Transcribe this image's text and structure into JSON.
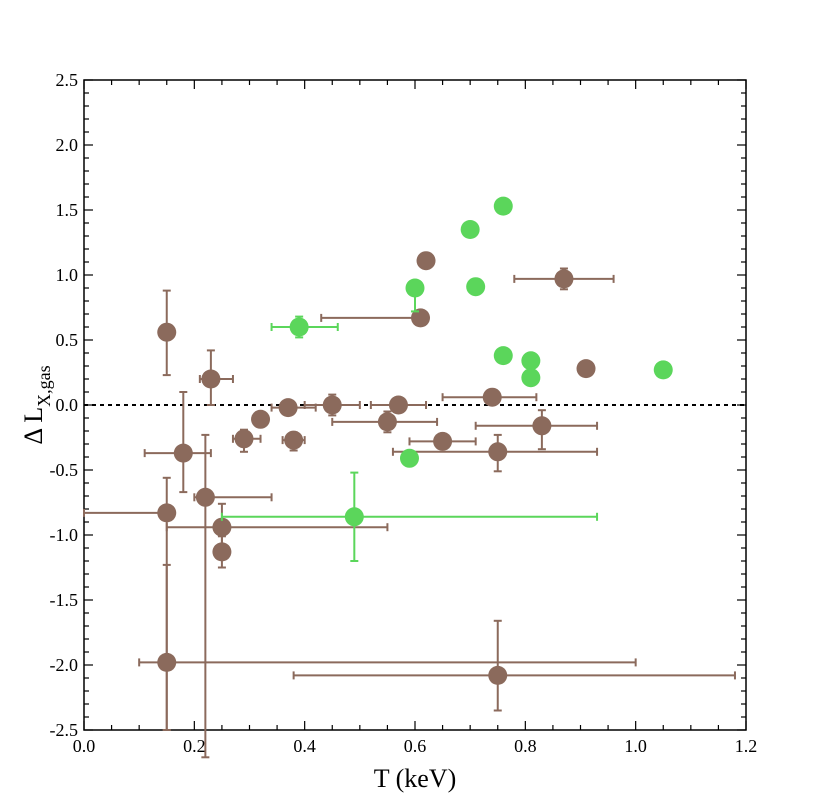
{
  "chart_data": {
    "type": "scatter",
    "title": "",
    "xlabel": "T (keV)",
    "ylabel_main": "Δ L",
    "ylabel_sub": "X,gas",
    "xlim": [
      0.0,
      1.2
    ],
    "ylim": [
      -2.5,
      2.5
    ],
    "x_ticks": [
      "0.0",
      "0.2",
      "0.4",
      "0.6",
      "0.8",
      "1.0",
      "1.2"
    ],
    "y_ticks": [
      "2.5",
      "2.0",
      "1.5",
      "1.0",
      "0.5",
      "0.0",
      "-0.5",
      "-1.0",
      "-1.5",
      "-2.0",
      "-2.5"
    ],
    "reference_line_y": 0.0,
    "grid": false,
    "series": [
      {
        "color": "#8b6a5c",
        "points": [
          {
            "x": 0.15,
            "y": 0.56,
            "xerr": [
              0.0,
              0.0
            ],
            "yerr": [
              0.33,
              0.32
            ]
          },
          {
            "x": 0.23,
            "y": 0.2,
            "xerr": [
              0.02,
              0.04
            ],
            "yerr": [
              0.2,
              0.22
            ]
          },
          {
            "x": 0.18,
            "y": -0.37,
            "xerr": [
              0.07,
              0.05
            ],
            "yerr": [
              0.3,
              0.47
            ]
          },
          {
            "x": 0.22,
            "y": -0.71,
            "xerr": [
              0.02,
              0.12
            ],
            "yerr": [
              2.0,
              0.48
            ]
          },
          {
            "x": 0.15,
            "y": -0.83,
            "xerr": [
              0.15,
              0.0
            ],
            "yerr": [
              1.67,
              0.27
            ]
          },
          {
            "x": 0.25,
            "y": -0.94,
            "xerr": [
              0.1,
              0.3
            ],
            "yerr": [
              0.15,
              0.18
            ]
          },
          {
            "x": 0.25,
            "y": -1.13,
            "xerr": [
              0.0,
              0.0
            ],
            "yerr": [
              0.12,
              0.12
            ]
          },
          {
            "x": 0.15,
            "y": -1.98,
            "xerr": [
              0.05,
              0.85
            ],
            "yerr": [
              0.52,
              0.75
            ]
          },
          {
            "x": 0.29,
            "y": -0.26,
            "xerr": [
              0.02,
              0.03
            ],
            "yerr": [
              0.1,
              0.07
            ]
          },
          {
            "x": 0.32,
            "y": -0.11,
            "xerr": [
              0.0,
              0.0
            ],
            "yerr": [
              0.0,
              0.0
            ]
          },
          {
            "x": 0.37,
            "y": -0.02,
            "xerr": [
              0.03,
              0.05
            ],
            "yerr": [
              0.03,
              0.03
            ]
          },
          {
            "x": 0.38,
            "y": -0.27,
            "xerr": [
              0.02,
              0.02
            ],
            "yerr": [
              0.08,
              0.06
            ]
          },
          {
            "x": 0.45,
            "y": 0.0,
            "xerr": [
              0.05,
              0.05
            ],
            "yerr": [
              0.08,
              0.08
            ]
          },
          {
            "x": 0.57,
            "y": 0.0,
            "xerr": [
              0.05,
              0.05
            ],
            "yerr": [
              0.02,
              0.02
            ]
          },
          {
            "x": 0.55,
            "y": -0.13,
            "xerr": [
              0.1,
              0.09
            ],
            "yerr": [
              0.08,
              0.08
            ]
          },
          {
            "x": 0.61,
            "y": 0.67,
            "xerr": [
              0.18,
              0.0
            ],
            "yerr": [
              0.03,
              0.03
            ]
          },
          {
            "x": 0.62,
            "y": 1.11,
            "xerr": [
              0.0,
              0.0
            ],
            "yerr": [
              0.0,
              0.0
            ]
          },
          {
            "x": 0.65,
            "y": -0.28,
            "xerr": [
              0.06,
              0.06
            ],
            "yerr": [
              0.05,
              0.05
            ]
          },
          {
            "x": 0.74,
            "y": 0.06,
            "xerr": [
              0.09,
              0.08
            ],
            "yerr": [
              0.05,
              0.05
            ]
          },
          {
            "x": 0.75,
            "y": -0.36,
            "xerr": [
              0.19,
              0.18
            ],
            "yerr": [
              0.15,
              0.13
            ]
          },
          {
            "x": 0.83,
            "y": -0.16,
            "xerr": [
              0.12,
              0.1
            ],
            "yerr": [
              0.18,
              0.12
            ]
          },
          {
            "x": 0.87,
            "y": 0.97,
            "xerr": [
              0.09,
              0.09
            ],
            "yerr": [
              0.08,
              0.08
            ]
          },
          {
            "x": 0.91,
            "y": 0.28,
            "xerr": [
              0.0,
              0.0
            ],
            "yerr": [
              0.0,
              0.0
            ]
          },
          {
            "x": 0.75,
            "y": -2.08,
            "xerr": [
              0.37,
              0.43
            ],
            "yerr": [
              0.27,
              0.42
            ]
          }
        ]
      },
      {
        "color": "#5bd65b",
        "points": [
          {
            "x": 0.39,
            "y": 0.6,
            "xerr": [
              0.05,
              0.07
            ],
            "yerr": [
              0.08,
              0.08
            ]
          },
          {
            "x": 0.6,
            "y": 0.9,
            "xerr": [
              0.0,
              0.0
            ],
            "yerr": [
              0.18,
              0.0
            ]
          },
          {
            "x": 0.7,
            "y": 1.35,
            "xerr": [
              0.0,
              0.0
            ],
            "yerr": [
              0.0,
              0.0
            ]
          },
          {
            "x": 0.76,
            "y": 1.53,
            "xerr": [
              0.0,
              0.0
            ],
            "yerr": [
              0.0,
              0.0
            ]
          },
          {
            "x": 0.71,
            "y": 0.91,
            "xerr": [
              0.0,
              0.0
            ],
            "yerr": [
              0.0,
              0.0
            ]
          },
          {
            "x": 0.76,
            "y": 0.38,
            "xerr": [
              0.0,
              0.0
            ],
            "yerr": [
              0.0,
              0.0
            ]
          },
          {
            "x": 0.81,
            "y": 0.34,
            "xerr": [
              0.0,
              0.0
            ],
            "yerr": [
              0.0,
              0.0
            ]
          },
          {
            "x": 0.81,
            "y": 0.21,
            "xerr": [
              0.0,
              0.0
            ],
            "yerr": [
              0.0,
              0.0
            ]
          },
          {
            "x": 1.05,
            "y": 0.27,
            "xerr": [
              0.0,
              0.0
            ],
            "yerr": [
              0.0,
              0.0
            ]
          },
          {
            "x": 0.59,
            "y": -0.41,
            "xerr": [
              0.01,
              0.01
            ],
            "yerr": [
              0.03,
              0.03
            ]
          },
          {
            "x": 0.49,
            "y": -0.86,
            "xerr": [
              0.24,
              0.44
            ],
            "yerr": [
              0.34,
              0.34
            ]
          }
        ]
      }
    ]
  }
}
